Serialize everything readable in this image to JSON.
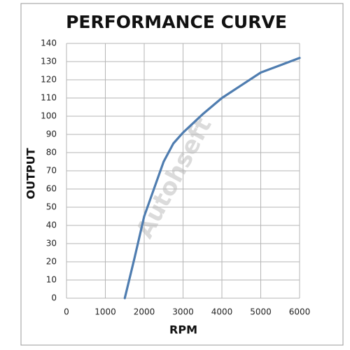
{
  "chart_data": {
    "type": "line",
    "title": "PERFORMANCE CURVE",
    "xlabel": "RPM",
    "ylabel": "OUTPUT",
    "watermark": "Autohseft",
    "x": [
      1500,
      1750,
      2000,
      2250,
      2500,
      2750,
      3000,
      3500,
      4000,
      4500,
      5000,
      5500,
      6000
    ],
    "series": [
      {
        "name": "OUTPUT",
        "color": "#4f7db0",
        "values": [
          0,
          22,
          45,
          60,
          75,
          85,
          91,
          101,
          110,
          117,
          124,
          128,
          132
        ]
      }
    ],
    "xlim": [
      0,
      6000
    ],
    "xticks": [
      0,
      1000,
      2000,
      3000,
      4000,
      5000,
      6000
    ],
    "ylim": [
      0,
      140
    ],
    "yticks": [
      0,
      10,
      20,
      30,
      40,
      50,
      60,
      70,
      80,
      90,
      100,
      110,
      120,
      130,
      140
    ],
    "grid": true
  }
}
